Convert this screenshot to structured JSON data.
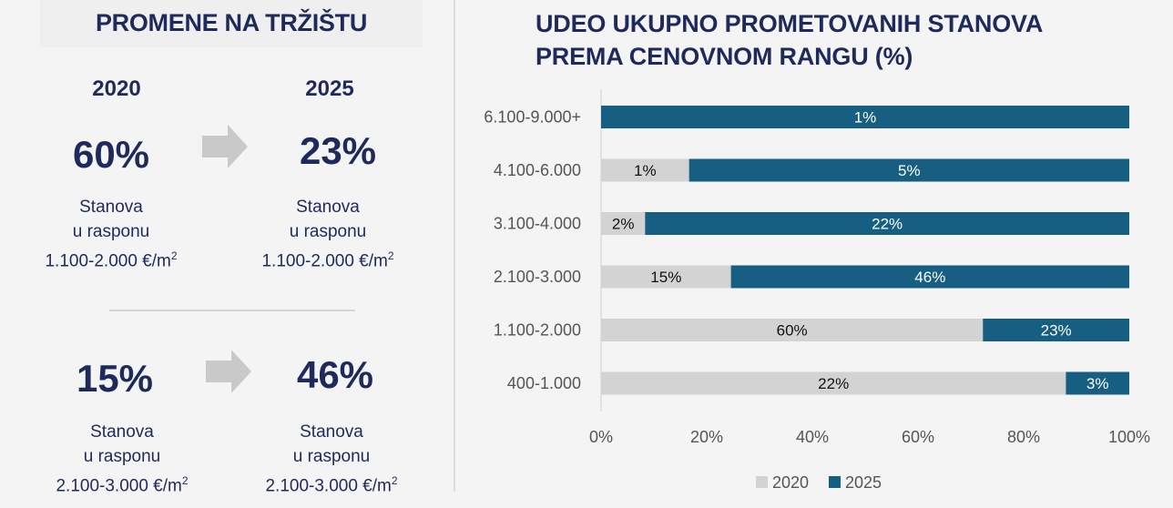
{
  "left": {
    "title": "PROMENE NA TRŽIŠTU",
    "year_left": "2020",
    "year_right": "2025",
    "row1": {
      "value_left": "60%",
      "value_right": "23%",
      "desc_line1": "Stanova",
      "desc_line2": "u rasponu",
      "desc_line3": "1.100-2.000 €/m",
      "desc_sup": "2"
    },
    "row2": {
      "value_left": "15%",
      "value_right": "46%",
      "desc_line1": "Stanova",
      "desc_line2": "u rasponu",
      "desc_line3": "2.100-3.000 €/m",
      "desc_sup": "2"
    }
  },
  "chart_data": {
    "type": "bar",
    "orientation": "horizontal",
    "stacked": true,
    "title_lines": [
      "UDEO UKUPNO PROMETOVANIH STANOVA",
      "PREMA CENOVNOM RANGU (%)"
    ],
    "categories": [
      "6.100-9.000+",
      "4.100-6.000",
      "3.100-4.000",
      "2.100-3.000",
      "1.100-2.000",
      "400-1.000"
    ],
    "series": [
      {
        "name": "2020",
        "color": "#d3d3d3",
        "values": [
          0,
          1,
          2,
          15,
          60,
          22
        ]
      },
      {
        "name": "2025",
        "color": "#165e82",
        "values": [
          1,
          5,
          22,
          46,
          23,
          3
        ]
      }
    ],
    "xlim": [
      0,
      100
    ],
    "x_ticks": [
      "0%",
      "20%",
      "40%",
      "60%",
      "80%",
      "100%"
    ],
    "legend_position": "bottom-center",
    "grid": false
  }
}
